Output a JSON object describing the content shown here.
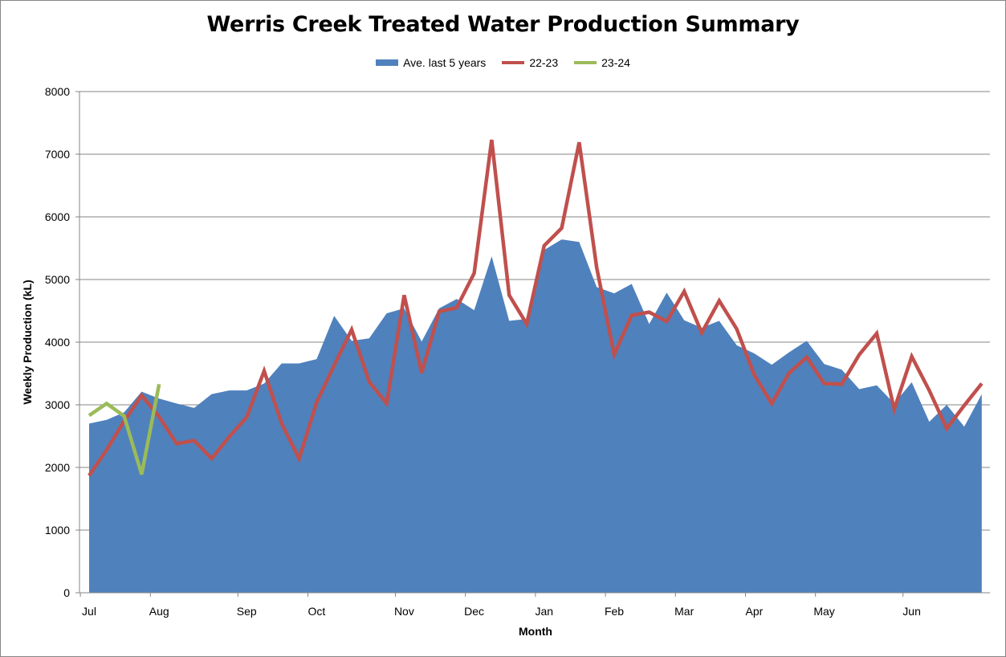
{
  "chart_data": {
    "type": "area",
    "title": "Werris Creek Treated Water Production Summary",
    "xlabel": "Month",
    "ylabel": "Weekly Production (kL)",
    "ylim": [
      0,
      8000
    ],
    "yticks": [
      0,
      1000,
      2000,
      3000,
      4000,
      5000,
      6000,
      7000,
      8000
    ],
    "grid": true,
    "legend_position": "top-center",
    "weeks": 53,
    "month_labels": [
      {
        "label": "Jul",
        "week": 0
      },
      {
        "label": "Aug",
        "week": 4
      },
      {
        "label": "Sep",
        "week": 9
      },
      {
        "label": "Oct",
        "week": 13
      },
      {
        "label": "Nov",
        "week": 18
      },
      {
        "label": "Dec",
        "week": 22
      },
      {
        "label": "Jan",
        "week": 26
      },
      {
        "label": "Feb",
        "week": 30
      },
      {
        "label": "Mar",
        "week": 34
      },
      {
        "label": "Apr",
        "week": 38
      },
      {
        "label": "May",
        "week": 42
      },
      {
        "label": "Jun",
        "week": 47
      }
    ],
    "series": [
      {
        "name": "Ave. last 5 years",
        "kind": "area",
        "color": "#4f81bd",
        "values": [
          2700,
          2760,
          2880,
          3210,
          3100,
          3020,
          2950,
          3170,
          3230,
          3230,
          3340,
          3660,
          3660,
          3730,
          4420,
          4020,
          4060,
          4460,
          4540,
          4010,
          4540,
          4690,
          4510,
          5370,
          4340,
          4370,
          5470,
          5640,
          5600,
          4880,
          4780,
          4930,
          4290,
          4790,
          4350,
          4230,
          4340,
          3950,
          3820,
          3640,
          3840,
          4020,
          3650,
          3560,
          3250,
          3310,
          3020,
          3360,
          2730,
          3000,
          2650,
          3170
        ]
      },
      {
        "name": "22-23",
        "kind": "line",
        "color": "#c0504d",
        "values": [
          1870,
          2280,
          2740,
          3150,
          2810,
          2380,
          2430,
          2140,
          2490,
          2800,
          3540,
          2700,
          2140,
          3040,
          3630,
          4200,
          3370,
          3020,
          4750,
          3510,
          4490,
          4550,
          5100,
          7230,
          4750,
          4290,
          5540,
          5820,
          7190,
          5190,
          3800,
          4430,
          4480,
          4330,
          4810,
          4150,
          4660,
          4210,
          3480,
          3020,
          3510,
          3760,
          3340,
          3330,
          3800,
          4140,
          2930,
          3770,
          3230,
          2620,
          2990,
          3340
        ]
      },
      {
        "name": "23-24",
        "kind": "line",
        "color": "#9bbb59",
        "values": [
          2830,
          3020,
          2820,
          1890,
          3330
        ]
      }
    ]
  }
}
